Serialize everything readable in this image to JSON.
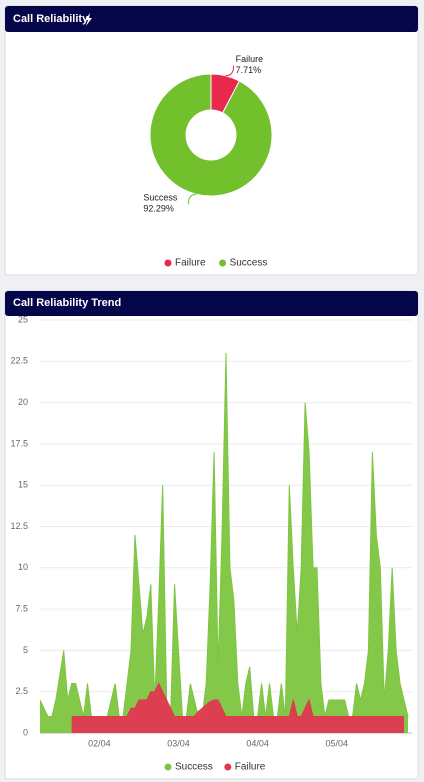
{
  "chart_data": [
    {
      "type": "pie",
      "title": "Call Reliability",
      "categories": [
        "Failure",
        "Success"
      ],
      "values": [
        7.71,
        92.29
      ],
      "value_labels": [
        "7.71%",
        "92.29%"
      ],
      "colors": [
        "#e8294d",
        "#72c02c"
      ],
      "legend": "bottom"
    },
    {
      "type": "area",
      "title": "Call Reliability Trend",
      "categories": [
        null,
        null,
        null,
        null,
        null,
        null,
        null,
        null,
        null,
        null,
        null,
        null,
        null,
        null,
        null,
        "02/04",
        null,
        null,
        null,
        null,
        null,
        null,
        null,
        null,
        null,
        null,
        null,
        null,
        null,
        null,
        null,
        null,
        null,
        null,
        null,
        "03/04",
        null,
        null,
        null,
        null,
        null,
        null,
        null,
        null,
        null,
        null,
        null,
        null,
        null,
        null,
        null,
        null,
        null,
        null,
        null,
        "04/04",
        null,
        null,
        null,
        null,
        null,
        null,
        null,
        null,
        null,
        null,
        null,
        null,
        null,
        null,
        null,
        null,
        null,
        null,
        null,
        "05/04",
        null,
        null,
        null,
        null,
        null,
        null,
        null,
        null,
        null,
        null,
        null,
        null,
        null,
        null,
        null,
        null,
        null,
        null
      ],
      "series": [
        {
          "name": "Success",
          "color": "#7dc540",
          "values": [
            2,
            1.5,
            1,
            1,
            2,
            3.5,
            5,
            2,
            3,
            3,
            2,
            1,
            3,
            1,
            1,
            1,
            1,
            1,
            2,
            3,
            1,
            1,
            3,
            5,
            12,
            9,
            6,
            7,
            9,
            2,
            8,
            15,
            2,
            1,
            9,
            5,
            1,
            1,
            3,
            2,
            1,
            1,
            3,
            9,
            17,
            4,
            12,
            23,
            10,
            8,
            3,
            1,
            3,
            4,
            1,
            1,
            3,
            1,
            3,
            1,
            1,
            3,
            1,
            15,
            10,
            6,
            10,
            20,
            17,
            10,
            10,
            3,
            1,
            2,
            2,
            2,
            2,
            2,
            1,
            1,
            3,
            2,
            3,
            5,
            17,
            12,
            10,
            2,
            5,
            10,
            5,
            3,
            2,
            1
          ]
        },
        {
          "name": "Failure",
          "color": "#e0384f",
          "values": [
            null,
            null,
            null,
            null,
            null,
            null,
            null,
            null,
            1,
            1,
            1,
            1,
            1,
            1,
            1,
            1,
            1,
            1,
            1,
            1,
            1,
            1,
            1,
            1.5,
            1.5,
            2,
            2,
            2,
            2.5,
            2.5,
            3,
            2.5,
            2,
            1.5,
            1,
            1,
            1,
            1,
            1,
            1,
            1.3,
            1.5,
            1.7,
            1.9,
            2,
            2,
            1.5,
            1,
            1,
            1,
            1,
            1,
            1,
            1,
            1,
            1,
            1,
            1,
            1,
            1,
            1,
            1,
            1,
            1,
            2,
            1,
            1,
            1.5,
            2,
            1,
            1,
            1,
            1,
            1,
            1,
            1,
            1,
            1,
            1,
            1,
            1,
            1,
            1,
            1,
            1,
            1,
            1,
            1,
            1,
            1,
            1,
            1,
            1,
            null
          ]
        }
      ],
      "ylim": [
        0,
        25
      ],
      "yticks": [
        0,
        2.5,
        5,
        7.5,
        10,
        12.5,
        15,
        17.5,
        20,
        22.5,
        25
      ],
      "grid": true,
      "legend": "bottom"
    }
  ]
}
